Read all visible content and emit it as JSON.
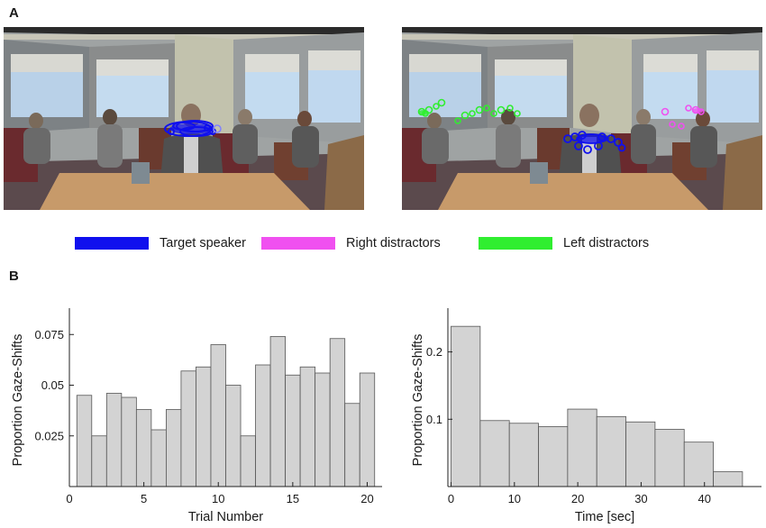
{
  "panels": {
    "a": "A",
    "b": "B"
  },
  "legend": [
    {
      "label": "Target  speaker",
      "color": "#1010ee"
    },
    {
      "label": "Right distractors",
      "color": "#f050f0"
    },
    {
      "label": "Left distractors",
      "color": "#30ee30"
    }
  ],
  "colors": {
    "target": "#1010ee",
    "right": "#f050f0",
    "left": "#30ee30",
    "bar_fill": "#d3d3d3",
    "bar_edge": "#555555"
  },
  "chart_data": [
    {
      "type": "bar",
      "xlabel": "Trial Number",
      "ylabel": "Proportion Gaze-Shifts",
      "x": [
        1,
        2,
        3,
        4,
        5,
        6,
        7,
        8,
        9,
        10,
        11,
        12,
        13,
        14,
        15,
        16,
        17,
        18,
        19,
        20
      ],
      "values": [
        0.045,
        0.025,
        0.046,
        0.044,
        0.038,
        0.028,
        0.038,
        0.057,
        0.059,
        0.07,
        0.05,
        0.025,
        0.06,
        0.074,
        0.055,
        0.059,
        0.056,
        0.073,
        0.041,
        0.056
      ],
      "xlim": [
        0,
        21
      ],
      "ylim": [
        0,
        0.088
      ],
      "xticks": [
        0,
        5,
        10,
        15,
        20
      ],
      "xtick_labels": [
        "0",
        "5",
        "10",
        "15",
        "20"
      ],
      "yticks": [
        0.025,
        0.05,
        0.075
      ],
      "ytick_labels": [
        "0.025",
        "0.05",
        "0.075"
      ]
    },
    {
      "type": "bar",
      "xlabel": "Time [sec]",
      "ylabel": "Proportion Gaze-Shifts",
      "bin_edges": [
        0,
        4.6,
        9.2,
        13.8,
        18.4,
        23,
        27.6,
        32.2,
        36.8,
        41.4,
        46
      ],
      "values": [
        0.238,
        0.098,
        0.094,
        0.089,
        0.115,
        0.104,
        0.096,
        0.085,
        0.066,
        0.022
      ],
      "xlim": [
        -0.5,
        49
      ],
      "ylim": [
        0,
        0.265
      ],
      "xticks": [
        0,
        10,
        20,
        30,
        40
      ],
      "xtick_labels": [
        "0",
        "10",
        "20",
        "30",
        "40"
      ],
      "yticks": [
        0.1,
        0.2
      ],
      "ytick_labels": [
        "0.1",
        "0.2"
      ]
    }
  ]
}
